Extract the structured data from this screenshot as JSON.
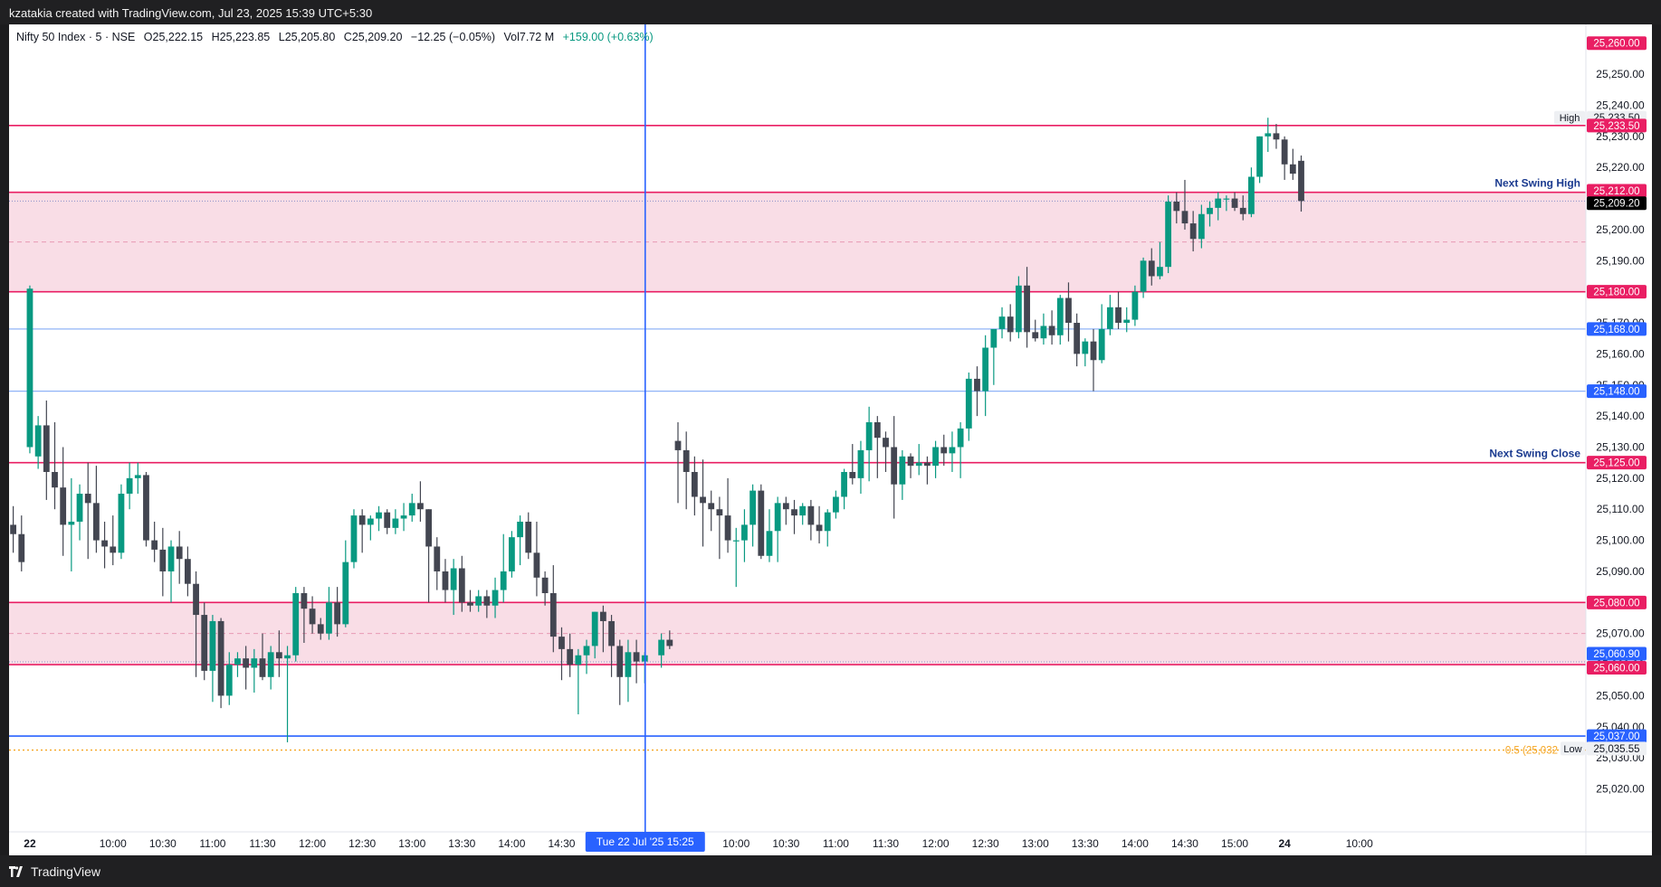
{
  "header": {
    "caption": "kzatakia created with TradingView.com, Jul 23, 2025 15:39 UTC+5:30"
  },
  "footer": {
    "brand": "TradingView"
  },
  "legend": {
    "symbol": "Nifty 50 Index · 5 · NSE",
    "open": "O25,222.15",
    "high": "H25,223.85",
    "low": "L25,205.80",
    "close": "C25,209.20",
    "change": "−12.25 (−0.05%)",
    "volume": "Vol7.72 M",
    "day_change": "+159.00 (+0.63%)"
  },
  "colors": {
    "up": "#089981",
    "down": "#434651",
    "level": "#e91e63",
    "zone": "#f9dde6",
    "blue_level": "#2962ff",
    "light_blue_level": "#90b4f7",
    "fib": "#f5a623",
    "crosshair": "#2962ff"
  },
  "chart_data": {
    "type": "candlestick",
    "symbol": "Nifty 50 Index",
    "interval": "5",
    "exchange": "NSE",
    "ylim": [
      25012,
      25264
    ],
    "y_ticks": [
      25020,
      25030,
      25040,
      25050,
      25060,
      25070,
      25080,
      25090,
      25100,
      25110,
      25120,
      25130,
      25140,
      25150,
      25160,
      25170,
      25180,
      25190,
      25200,
      25210,
      25220,
      25230,
      25240,
      25250
    ],
    "x_ticks": [
      {
        "label": "22",
        "slot": 2,
        "bold": true
      },
      {
        "label": "10:00",
        "slot": 12
      },
      {
        "label": "10:30",
        "slot": 18
      },
      {
        "label": "11:00",
        "slot": 24
      },
      {
        "label": "11:30",
        "slot": 30
      },
      {
        "label": "12:00",
        "slot": 36
      },
      {
        "label": "12:30",
        "slot": 42
      },
      {
        "label": "13:00",
        "slot": 48
      },
      {
        "label": "13:30",
        "slot": 54
      },
      {
        "label": "14:00",
        "slot": 60
      },
      {
        "label": "14:30",
        "slot": 66
      },
      {
        "label": "10:00",
        "slot": 87
      },
      {
        "label": "10:30",
        "slot": 93
      },
      {
        "label": "11:00",
        "slot": 99
      },
      {
        "label": "11:30",
        "slot": 105
      },
      {
        "label": "12:00",
        "slot": 111
      },
      {
        "label": "12:30",
        "slot": 117
      },
      {
        "label": "13:00",
        "slot": 123
      },
      {
        "label": "13:30",
        "slot": 129
      },
      {
        "label": "14:00",
        "slot": 135
      },
      {
        "label": "14:30",
        "slot": 141
      },
      {
        "label": "15:00",
        "slot": 147
      },
      {
        "label": "24",
        "slot": 153,
        "bold": true
      },
      {
        "label": "10:00",
        "slot": 162
      }
    ],
    "crosshair": {
      "slot": 76,
      "label": "Tue 22 Jul '25   15:25"
    },
    "zones": [
      {
        "top": 25212,
        "bottom": 25180,
        "mid": 25196,
        "dotted": 25209.2
      },
      {
        "top": 25080,
        "bottom": 25060,
        "mid": 25070,
        "dotted": 25060.9
      }
    ],
    "levels": [
      {
        "price": 25233.5,
        "label": "25,233.50",
        "kind": "red"
      },
      {
        "price": 25212,
        "label": "25,212.00",
        "kind": "red",
        "annotation": "Next Swing High"
      },
      {
        "price": 25180,
        "label": "25,180.00",
        "kind": "red"
      },
      {
        "price": 25168,
        "label": "25,168.00",
        "kind": "lightblue"
      },
      {
        "price": 25148,
        "label": "25,148.00",
        "kind": "lightblue"
      },
      {
        "price": 25125,
        "label": "25,125.00",
        "kind": "red",
        "annotation": "Next Swing Close"
      },
      {
        "price": 25080,
        "label": "25,080.00",
        "kind": "red"
      },
      {
        "price": 25060,
        "label": "25,060.00",
        "kind": "red"
      },
      {
        "price": 25037,
        "label": "25,037.00",
        "kind": "blue"
      }
    ],
    "fib": {
      "price": 25032.5,
      "label": "0.5 (25,032"
    },
    "price_tags": [
      {
        "price": 25260,
        "label": "25,260.00",
        "bg": "#e91e63",
        "fg": "#ffffff"
      },
      {
        "price": 25236,
        "label": "25,233.50",
        "bg": "#eef0f3",
        "fg": "#131722",
        "note": "High"
      },
      {
        "price": 25233.5,
        "label": "25,233.50",
        "bg": "#e91e63",
        "fg": "#ffffff"
      },
      {
        "price": 25212.5,
        "label": "25,212.00",
        "bg": "#e91e63",
        "fg": "#ffffff"
      },
      {
        "price": 25208.5,
        "label": "25,209.20",
        "bg": "#000000",
        "fg": "#ffffff"
      },
      {
        "price": 25180,
        "label": "25,180.00",
        "bg": "#e91e63",
        "fg": "#ffffff"
      },
      {
        "price": 25168,
        "label": "25,168.00",
        "bg": "#2962ff",
        "fg": "#ffffff"
      },
      {
        "price": 25148,
        "label": "25,148.00",
        "bg": "#2962ff",
        "fg": "#ffffff"
      },
      {
        "price": 25125,
        "label": "25,125.00",
        "bg": "#e91e63",
        "fg": "#ffffff"
      },
      {
        "price": 25080,
        "label": "25,080.00",
        "bg": "#e91e63",
        "fg": "#ffffff"
      },
      {
        "price": 25063.5,
        "label": "25,060.90",
        "bg": "#2962ff",
        "fg": "#ffffff"
      },
      {
        "price": 25059,
        "label": "25,060.00",
        "bg": "#e91e63",
        "fg": "#ffffff"
      },
      {
        "price": 25037,
        "label": "25,037.00",
        "bg": "#2962ff",
        "fg": "#ffffff"
      },
      {
        "price": 25033,
        "label": "25,035.55",
        "bg": "#eef0f3",
        "fg": "#131722",
        "note": "Low"
      }
    ],
    "candles": [
      [
        25105,
        25111,
        25096,
        25102
      ],
      [
        25102,
        25108,
        25090,
        25093
      ],
      [
        25130,
        25182,
        25128,
        25181
      ],
      [
        25127,
        25140,
        25123,
        25137
      ],
      [
        25137,
        25145,
        25113,
        25122
      ],
      [
        25122,
        25138,
        25110,
        25117
      ],
      [
        25117,
        25130,
        25095,
        25105
      ],
      [
        25105,
        25120,
        25090,
        25106
      ],
      [
        25106,
        25118,
        25100,
        25115
      ],
      [
        25115,
        25125,
        25094,
        25112
      ],
      [
        25112,
        25124,
        25096,
        25100
      ],
      [
        25100,
        25106,
        25091,
        25098
      ],
      [
        25098,
        25108,
        25092,
        25096
      ],
      [
        25096,
        25118,
        25094,
        25115
      ],
      [
        25115,
        25125,
        25110,
        25120
      ],
      [
        25120,
        25125,
        25115,
        25121
      ],
      [
        25121,
        25122,
        25098,
        25100
      ],
      [
        25100,
        25106,
        25093,
        25097
      ],
      [
        25097,
        25104,
        25082,
        25090
      ],
      [
        25090,
        25100,
        25080,
        25098
      ],
      [
        25098,
        25103,
        25086,
        25094
      ],
      [
        25094,
        25098,
        25082,
        25086
      ],
      [
        25086,
        25090,
        25056,
        25076
      ],
      [
        25076,
        25080,
        25055,
        25058
      ],
      [
        25058,
        25076,
        25048,
        25074
      ],
      [
        25074,
        25075,
        25046,
        25050
      ],
      [
        25050,
        25064,
        25047,
        25060
      ],
      [
        25060,
        25064,
        25056,
        25062
      ],
      [
        25062,
        25066,
        25052,
        25059
      ],
      [
        25059,
        25065,
        25051,
        25062
      ],
      [
        25062,
        25070,
        25055,
        25056
      ],
      [
        25056,
        25066,
        25052,
        25064
      ],
      [
        25064,
        25071,
        25056,
        25062
      ],
      [
        25062,
        25066,
        25035,
        25063
      ],
      [
        25063,
        25085,
        25061,
        25083
      ],
      [
        25083,
        25085,
        25067,
        25078
      ],
      [
        25078,
        25082,
        25070,
        25073
      ],
      [
        25073,
        25075,
        25068,
        25070
      ],
      [
        25070,
        25085,
        25068,
        25080
      ],
      [
        25080,
        25085,
        25069,
        25073
      ],
      [
        25073,
        25100,
        25072,
        25093
      ],
      [
        25093,
        25110,
        25091,
        25108
      ],
      [
        25108,
        25110,
        25096,
        25105
      ],
      [
        25105,
        25108,
        25100,
        25107
      ],
      [
        25107,
        25111,
        25103,
        25109
      ],
      [
        25109,
        25110,
        25102,
        25104
      ],
      [
        25104,
        25110,
        25102,
        25107
      ],
      [
        25107,
        25112,
        25103,
        25108
      ],
      [
        25108,
        25115,
        25106,
        25112
      ],
      [
        25112,
        25119,
        25106,
        25110
      ],
      [
        25110,
        25110,
        25080,
        25098
      ],
      [
        25098,
        25101,
        25084,
        25090
      ],
      [
        25090,
        25094,
        25080,
        25084
      ],
      [
        25084,
        25094,
        25076,
        25091
      ],
      [
        25091,
        25095,
        25077,
        25080
      ],
      [
        25080,
        25084,
        25077,
        25079
      ],
      [
        25079,
        25084,
        25077,
        25082
      ],
      [
        25082,
        25084,
        25075,
        25079
      ],
      [
        25079,
        25088,
        25075,
        25084
      ],
      [
        25084,
        25102,
        25080,
        25090
      ],
      [
        25090,
        25103,
        25088,
        25101
      ],
      [
        25101,
        25108,
        25092,
        25106
      ],
      [
        25106,
        25109,
        25094,
        25096
      ],
      [
        25096,
        25106,
        25082,
        25088
      ],
      [
        25088,
        25090,
        25079,
        25083
      ],
      [
        25083,
        25092,
        25064,
        25069
      ],
      [
        25069,
        25072,
        25055,
        25065
      ],
      [
        25065,
        25070,
        25056,
        25060
      ],
      [
        25060,
        25065,
        25044,
        25063
      ],
      [
        25063,
        25068,
        25057,
        25066
      ],
      [
        25066,
        25077,
        25062,
        25077
      ],
      [
        25077,
        25079,
        25064,
        25074
      ],
      [
        25074,
        25076,
        25056,
        25066
      ],
      [
        25066,
        25068,
        25047,
        25056
      ],
      [
        25056,
        25068,
        25048,
        25064
      ],
      [
        25064,
        25068,
        25054,
        25061
      ],
      [
        25061,
        25064,
        25054,
        25063
      ],
      [
        25063,
        25070,
        25059,
        25068
      ],
      [
        25068,
        25071,
        25065,
        25066
      ],
      [
        25132,
        25138,
        25112,
        25129
      ],
      [
        25129,
        25135,
        25110,
        25122
      ],
      [
        25122,
        25127,
        25108,
        25114
      ],
      [
        25114,
        25126,
        25098,
        25112
      ],
      [
        25112,
        25116,
        25103,
        25110
      ],
      [
        25110,
        25114,
        25094,
        25108
      ],
      [
        25108,
        25120,
        25096,
        25100
      ],
      [
        25100,
        25104,
        25085,
        25100
      ],
      [
        25100,
        25110,
        25093,
        25105
      ],
      [
        25105,
        25118,
        25098,
        25116
      ],
      [
        25116,
        25118,
        25094,
        25095
      ],
      [
        25095,
        25110,
        25093,
        25103
      ],
      [
        25103,
        25114,
        25093,
        25112
      ],
      [
        25112,
        25114,
        25105,
        25110
      ],
      [
        25110,
        25113,
        25102,
        25108
      ],
      [
        25108,
        25112,
        25105,
        25111
      ],
      [
        25111,
        25113,
        25100,
        25105
      ],
      [
        25105,
        25111,
        25099,
        25103
      ],
      [
        25103,
        25110,
        25098,
        25109
      ],
      [
        25109,
        25116,
        25107,
        25114
      ],
      [
        25114,
        25123,
        25110,
        25122
      ],
      [
        25122,
        25131,
        25118,
        25120
      ],
      [
        25120,
        25132,
        25115,
        25129
      ],
      [
        25129,
        25143,
        25119,
        25138
      ],
      [
        25138,
        25140,
        25120,
        25133
      ],
      [
        25133,
        25135,
        25122,
        25130
      ],
      [
        25130,
        25140,
        25107,
        25118
      ],
      [
        25118,
        25129,
        25113,
        25127
      ],
      [
        25127,
        25128,
        25120,
        25124
      ],
      [
        25124,
        25131,
        25121,
        25125
      ],
      [
        25125,
        25127,
        25118,
        25124
      ],
      [
        25124,
        25132,
        25120,
        25130
      ],
      [
        25130,
        25134,
        25124,
        25128
      ],
      [
        25128,
        25135,
        25122,
        25130
      ],
      [
        25130,
        25138,
        25120,
        25136
      ],
      [
        25136,
        25154,
        25132,
        25152
      ],
      [
        25152,
        25156,
        25140,
        25148
      ],
      [
        25148,
        25166,
        25140,
        25162
      ],
      [
        25162,
        25167,
        25150,
        25168
      ],
      [
        25168,
        25175,
        25165,
        25172
      ],
      [
        25172,
        25176,
        25164,
        25167
      ],
      [
        25167,
        25185,
        25165,
        25182
      ],
      [
        25182,
        25188,
        25162,
        25167
      ],
      [
        25167,
        25171,
        25164,
        25165
      ],
      [
        25165,
        25173,
        25163,
        25169
      ],
      [
        25169,
        25174,
        25163,
        25166
      ],
      [
        25166,
        25179,
        25163,
        25178
      ],
      [
        25178,
        25183,
        25164,
        25170
      ],
      [
        25170,
        25173,
        25156,
        25160
      ],
      [
        25160,
        25165,
        25156,
        25164
      ],
      [
        25164,
        25168,
        25148,
        25158
      ],
      [
        25158,
        25176,
        25157,
        25168
      ],
      [
        25168,
        25179,
        25166,
        25175
      ],
      [
        25175,
        25180,
        25168,
        25170
      ],
      [
        25170,
        25175,
        25167,
        25171
      ],
      [
        25171,
        25182,
        25169,
        25180
      ],
      [
        25180,
        25191,
        25178,
        25190
      ],
      [
        25190,
        25194,
        25182,
        25185
      ],
      [
        25185,
        25196,
        25184,
        25188
      ],
      [
        25188,
        25211,
        25186,
        25209
      ],
      [
        25209,
        25212,
        25202,
        25206
      ],
      [
        25206,
        25216,
        25200,
        25202
      ],
      [
        25202,
        25206,
        25193,
        25197
      ],
      [
        25197,
        25208,
        25194,
        25205
      ],
      [
        25205,
        25209,
        25201,
        25207
      ],
      [
        25207,
        25212,
        25203,
        25210
      ],
      [
        25210,
        25211,
        25206,
        25210
      ],
      [
        25210,
        25212,
        25206,
        25207
      ],
      [
        25207,
        25211,
        25203,
        25205
      ],
      [
        25205,
        25220,
        25204,
        25217
      ],
      [
        25217,
        25230,
        25215,
        25230
      ],
      [
        25230,
        25236,
        25225,
        25231
      ],
      [
        25231,
        25234,
        25226,
        25229
      ],
      [
        25229,
        25230,
        25216,
        25221
      ],
      [
        25221,
        25226,
        25216,
        25218
      ],
      [
        25222.15,
        25223.85,
        25205.8,
        25209.2
      ]
    ]
  }
}
